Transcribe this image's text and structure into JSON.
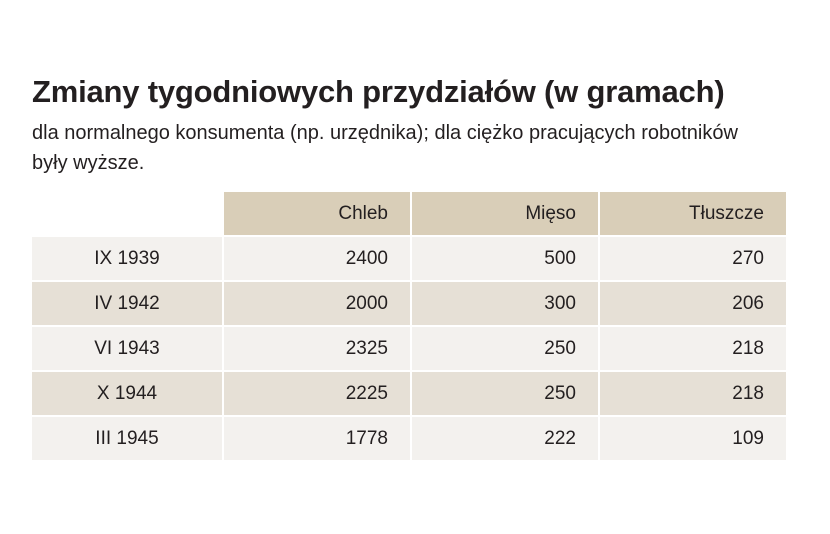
{
  "title": "Zmiany tygodniowych przydziałów (w gramach)",
  "subtitle": "dla normalnego konsumenta (np. urzędnika); dla ciężko pracujących robotników były wyższe.",
  "table": {
    "headers": [
      "Chleb",
      "Mięso",
      "Tłuszcze"
    ],
    "rows": [
      {
        "period": "IX 1939",
        "values": [
          "2400",
          "500",
          "270"
        ]
      },
      {
        "period": "IV 1942",
        "values": [
          "2000",
          "300",
          "206"
        ]
      },
      {
        "period": "VI 1943",
        "values": [
          "2325",
          "250",
          "218"
        ]
      },
      {
        "period": "X 1944",
        "values": [
          "2225",
          "250",
          "218"
        ]
      },
      {
        "period": "III 1945",
        "values": [
          "1778",
          "222",
          "109"
        ]
      }
    ]
  }
}
